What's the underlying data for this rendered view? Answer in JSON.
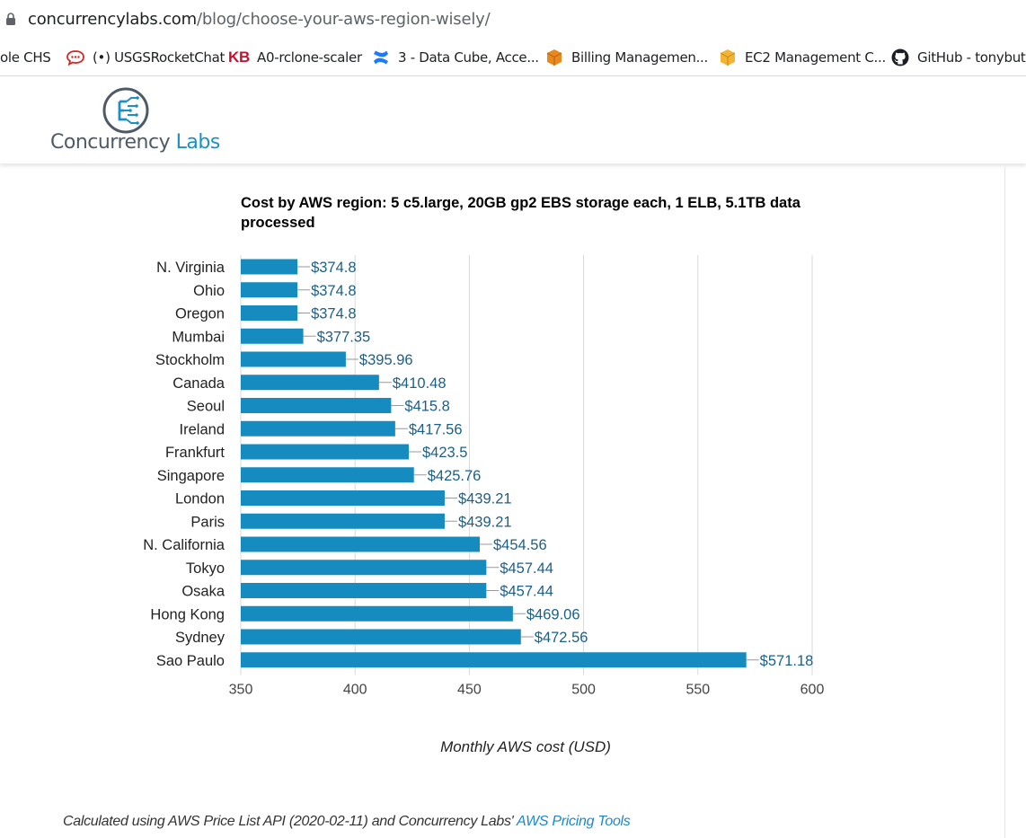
{
  "browser": {
    "url_domain": "concurrencylabs.com",
    "url_path": "/blog/choose-your-aws-region-wisely/",
    "bookmarks": [
      {
        "label": "ole CHS",
        "icon": "none"
      },
      {
        "label": "(•) USGSRocketChat",
        "icon": "rocketchat-icon"
      },
      {
        "label": "A0-rclone-scaler",
        "icon": "kb-icon"
      },
      {
        "label": "3 - Data Cube, Acce...",
        "icon": "confluence-icon"
      },
      {
        "label": "Billing Managemen...",
        "icon": "aws-box-icon"
      },
      {
        "label": "EC2 Management C...",
        "icon": "aws-box-icon"
      },
      {
        "label": "GitHub - tonybutz",
        "icon": "github-icon"
      }
    ]
  },
  "site": {
    "logo_word1": "Concurrency",
    "logo_word2": "Labs"
  },
  "chart_data": {
    "type": "bar",
    "orientation": "horizontal",
    "title": "Cost by AWS region: 5 c5.large, 20GB gp2 EBS storage each, 1 ELB, 5.1TB data processed",
    "xlabel": "Monthly AWS cost (USD)",
    "ylabel": "",
    "xlim": [
      350,
      600
    ],
    "xticks": [
      350,
      400,
      450,
      500,
      550,
      600
    ],
    "grid": true,
    "bar_color": "#168bc0",
    "label_color": "#1c5f86",
    "categories": [
      "N. Virginia",
      "Ohio",
      "Oregon",
      "Mumbai",
      "Stockholm",
      "Canada",
      "Seoul",
      "Ireland",
      "Frankfurt",
      "Singapore",
      "London",
      "Paris",
      "N. California",
      "Tokyo",
      "Osaka",
      "Hong Kong",
      "Sydney",
      "Sao Paulo"
    ],
    "values": [
      374.8,
      374.8,
      374.8,
      377.35,
      395.96,
      410.48,
      415.8,
      417.56,
      423.5,
      425.76,
      439.21,
      439.21,
      454.56,
      457.44,
      457.44,
      469.06,
      472.56,
      571.18
    ],
    "value_labels": [
      "$374.8",
      "$374.8",
      "$374.8",
      "$377.35",
      "$395.96",
      "$410.48",
      "$415.8",
      "$417.56",
      "$423.5",
      "$425.76",
      "$439.21",
      "$439.21",
      "$454.56",
      "$457.44",
      "$457.44",
      "$469.06",
      "$472.56",
      "$571.18"
    ]
  },
  "footer": {
    "note": "Calculated using AWS Price List API (2020-02-11) and Concurrency Labs'",
    "link_text": "AWS Pricing Tools"
  }
}
